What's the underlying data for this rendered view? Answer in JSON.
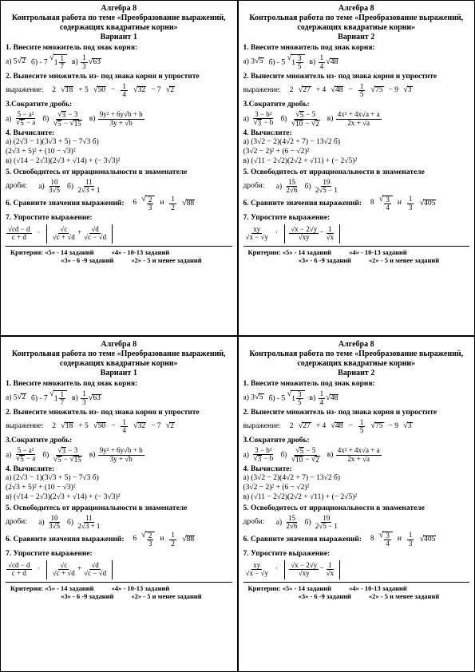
{
  "subject": "Алгебра 8",
  "theme": "Контрольная работа по теме «Преобразование выражений, содержащих квадратные корни»",
  "variants": [
    {
      "label": "Вариант 1",
      "t1": {
        "title": "1. Внесите множитель под знак  корня:",
        "a_coef": "5",
        "a_rad": "2",
        "b_coef": "− 7",
        "b_in_int": "1",
        "b_in_num": "1",
        "b_in_den": "7",
        "c_num": "1",
        "c_den": "3",
        "c_rad": "63"
      },
      "t2": {
        "title": "2. Вынесите множитель из- под знака корня и упростите",
        "word": "выражение:",
        "e1c": "2",
        "e1r": "18",
        "e2c": "+ 5",
        "e2r": "50",
        "e3f_num": "1",
        "e3f_den": "4",
        "e3r": "32",
        "e4c": "− 7",
        "e4r": "2",
        "sign3": "−"
      },
      "t3": {
        "title": "3.Сократите дробь:",
        "a_num": "5 − a²",
        "a_den_l": "5",
        "a_den_r": "a",
        "b_num_l": "3",
        "b_num_r": "3",
        "b_den_l": "5",
        "b_den_r": "15",
        "c_num": "9y² + 6y√b + b",
        "c_den": "3y + √b"
      },
      "t4": {
        "title": "4. Вычислите:",
        "l1": "а) (2√3 − 1)(3√3 + 5) − 7√3      б)",
        "l2": "(2√3 + 5)² + (10 − √3)²",
        "l3": "в) (√14 − 2√3)(2√3 + √14) + (− 3√3)²"
      },
      "t5": {
        "title": "5. Освободитесь от иррациональности в знаменателе",
        "word": "дроби:",
        "a_num": "10",
        "a_den": "3√5",
        "b_num": "11",
        "b_den": "2√3 + 1"
      },
      "t6": {
        "title": "6. Сравните значения выражений:",
        "l_c": "6",
        "l_num": "2",
        "l_den": "3",
        "r_num": "1",
        "r_den": "2",
        "r_rad": "88"
      },
      "t7": {
        "title": "7. Упростите выражение:",
        "f1_num": "√cd − d",
        "f1_den": "c + d",
        "b1_num": "√c",
        "b1_den": "√c + √d",
        "b2_num": "√d",
        "b2_den": "√c − √d",
        "b_op": "+"
      }
    },
    {
      "label": "Вариант 2",
      "t1": {
        "title": "1. Внесите множитель под знак  корня:",
        "a_coef": "3",
        "a_rad": "5",
        "b_coef": "− 5",
        "b_in_int": "1",
        "b_in_num": "3",
        "b_in_den": "5",
        "c_num": "1",
        "c_den": "4",
        "c_rad": "48"
      },
      "t2": {
        "title": "2. Вынесите множитель из- под знака корня и упростите",
        "word": "выражение:",
        "e1c": "2",
        "e1r": "27",
        "e2c": "+ 4",
        "e2r": "48",
        "e3f_num": "1",
        "e3f_den": "5",
        "e3r": "75",
        "e4c": "− 9",
        "e4r": "3",
        "sign3": "−"
      },
      "t3": {
        "title": "3.Сократите дробь:",
        "a_num": "3 − b²",
        "a_den_l": "3",
        "a_den_r": "b",
        "b_num_l": "5",
        "b_num_r": "5",
        "b_den_l": "10",
        "b_den_r": "2",
        "c_num": "4x² + 4x√a + a",
        "c_den": "2x + √a"
      },
      "t4": {
        "title": "4. Вычислите:",
        "l1": "а) (3√2 − 2)(4√2 + 7) − 13√2      б)",
        "l2": "(3√2 − 2)² + (6 − √2)²",
        "l3": "в) (√11 − 2√2)(2√2 + √11) + (− 2√5)²"
      },
      "t5": {
        "title": "5. Освободитесь от иррациональности в знаменателе",
        "word": "дроби:",
        "a_num": "15",
        "a_den": "2√6",
        "b_num": "19",
        "b_den": "2√5 − 1"
      },
      "t6": {
        "title": "6. Сравните значения выражений:",
        "l_c": "8",
        "l_num": "3",
        "l_den": "4",
        "r_num": "1",
        "r_den": "3",
        "r_rad": "405"
      },
      "t7": {
        "title": "7. Упростите выражение:",
        "f1_num": "xy",
        "f1_den": "√x − √y",
        "b1_num": "√x − 2√y",
        "b1_den": "√xy",
        "b2_num": "1",
        "b2_den": "√x",
        "b_op": "−"
      }
    }
  ],
  "criteria": {
    "label": "Критерии:",
    "c5": "«5» - 14 заданий",
    "c4": "«4» - 10-13 заданий",
    "c3": "«3» - 6 -9 заданий",
    "c2": "«2» - 5 и менее заданий"
  },
  "and": "и"
}
